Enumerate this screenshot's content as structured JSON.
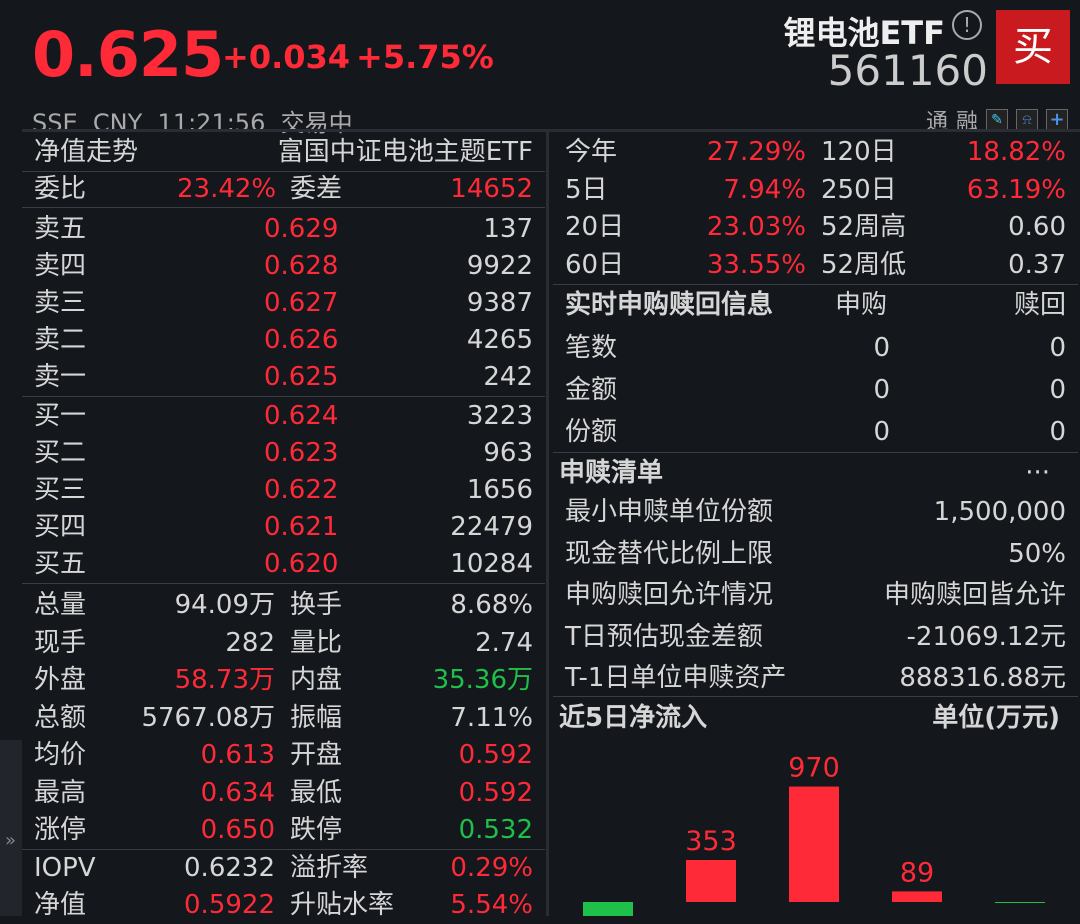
{
  "header": {
    "price": "0.625",
    "change": "+0.034",
    "change_pct": "+5.75%",
    "exchange": "SSE",
    "currency": "CNY",
    "time": "11:21:56",
    "status": "交易中",
    "name": "锂电池ETF",
    "code": "561160",
    "buy_label": "买",
    "tag1": "通",
    "tag2": "融"
  },
  "left": {
    "title": "净值走势",
    "fund_name": "富国中证电池主题ETF",
    "ratio": {
      "l1": "委比",
      "v1": "23.42%",
      "l2": "委差",
      "v2": "14652"
    },
    "asks": [
      {
        "label": "卖五",
        "price": "0.629",
        "vol": "137"
      },
      {
        "label": "卖四",
        "price": "0.628",
        "vol": "9922"
      },
      {
        "label": "卖三",
        "price": "0.627",
        "vol": "9387"
      },
      {
        "label": "卖二",
        "price": "0.626",
        "vol": "4265"
      },
      {
        "label": "卖一",
        "price": "0.625",
        "vol": "242"
      }
    ],
    "bids": [
      {
        "label": "买一",
        "price": "0.624",
        "vol": "3223"
      },
      {
        "label": "买二",
        "price": "0.623",
        "vol": "963"
      },
      {
        "label": "买三",
        "price": "0.622",
        "vol": "1656"
      },
      {
        "label": "买四",
        "price": "0.621",
        "vol": "22479"
      },
      {
        "label": "买五",
        "price": "0.620",
        "vol": "10284"
      }
    ],
    "stats": [
      {
        "l1": "总量",
        "v1": "94.09万",
        "c1": "w",
        "l2": "换手",
        "v2": "8.68%",
        "c2": "w"
      },
      {
        "l1": "现手",
        "v1": "282",
        "c1": "w",
        "l2": "量比",
        "v2": "2.74",
        "c2": "w"
      },
      {
        "l1": "外盘",
        "v1": "58.73万",
        "c1": "r",
        "l2": "内盘",
        "v2": "35.36万",
        "c2": "g"
      },
      {
        "l1": "总额",
        "v1": "5767.08万",
        "c1": "w",
        "l2": "振幅",
        "v2": "7.11%",
        "c2": "w"
      },
      {
        "l1": "均价",
        "v1": "0.613",
        "c1": "r",
        "l2": "开盘",
        "v2": "0.592",
        "c2": "r"
      },
      {
        "l1": "最高",
        "v1": "0.634",
        "c1": "r",
        "l2": "最低",
        "v2": "0.592",
        "c2": "r"
      },
      {
        "l1": "涨停",
        "v1": "0.650",
        "c1": "r",
        "l2": "跌停",
        "v2": "0.532",
        "c2": "g"
      },
      {
        "l1": "IOPV",
        "v1": "0.6232",
        "c1": "w",
        "l2": "溢折率",
        "v2": "0.29%",
        "c2": "r"
      },
      {
        "l1": "净值",
        "v1": "0.5922",
        "c1": "r",
        "l2": "升贴水率",
        "v2": "5.54%",
        "c2": "r"
      }
    ]
  },
  "right": {
    "perf": [
      {
        "l1": "今年",
        "v1": "27.29%",
        "c1": "r",
        "l2": "120日",
        "v2": "18.82%",
        "c2": "r"
      },
      {
        "l1": "5日",
        "v1": "7.94%",
        "c1": "r",
        "l2": "250日",
        "v2": "63.19%",
        "c2": "r"
      },
      {
        "l1": "20日",
        "v1": "23.03%",
        "c1": "r",
        "l2": "52周高",
        "v2": "0.60",
        "c2": "w"
      },
      {
        "l1": "60日",
        "v1": "33.55%",
        "c1": "r",
        "l2": "52周低",
        "v2": "0.37",
        "c2": "w"
      }
    ],
    "realtime": {
      "title": "实时申购赎回信息",
      "col1": "申购",
      "col2": "赎回",
      "rows": [
        {
          "label": "笔数",
          "v1": "0",
          "v2": "0"
        },
        {
          "label": "金额",
          "v1": "0",
          "v2": "0"
        },
        {
          "label": "份额",
          "v1": "0",
          "v2": "0"
        }
      ]
    },
    "list": {
      "title": "申赎清单",
      "more": "···",
      "rows": [
        {
          "label": "最小申赎单位份额",
          "value": "1,500,000"
        },
        {
          "label": "现金替代比例上限",
          "value": "50%"
        },
        {
          "label": "申购赎回允许情况",
          "value": "申购赎回皆允许"
        },
        {
          "label": "T日预估现金差额",
          "value": "-21069.12元"
        },
        {
          "label": "T-1日单位申赎资产",
          "value": "888316.88元"
        }
      ]
    },
    "flow_title": "近5日净流入",
    "flow_unit": "单位(万元)"
  },
  "chart_data": {
    "type": "bar",
    "title": "近5日净流入",
    "ylabel": "单位(万元)",
    "values": [
      null,
      353,
      970,
      89,
      null
    ],
    "labels": [
      "",
      "353",
      "970",
      "89",
      ""
    ],
    "signs": [
      "negative",
      "positive",
      "positive",
      "positive",
      "negative"
    ],
    "colors": {
      "positive": "#ff2a38",
      "negative": "#1fc04a"
    }
  }
}
